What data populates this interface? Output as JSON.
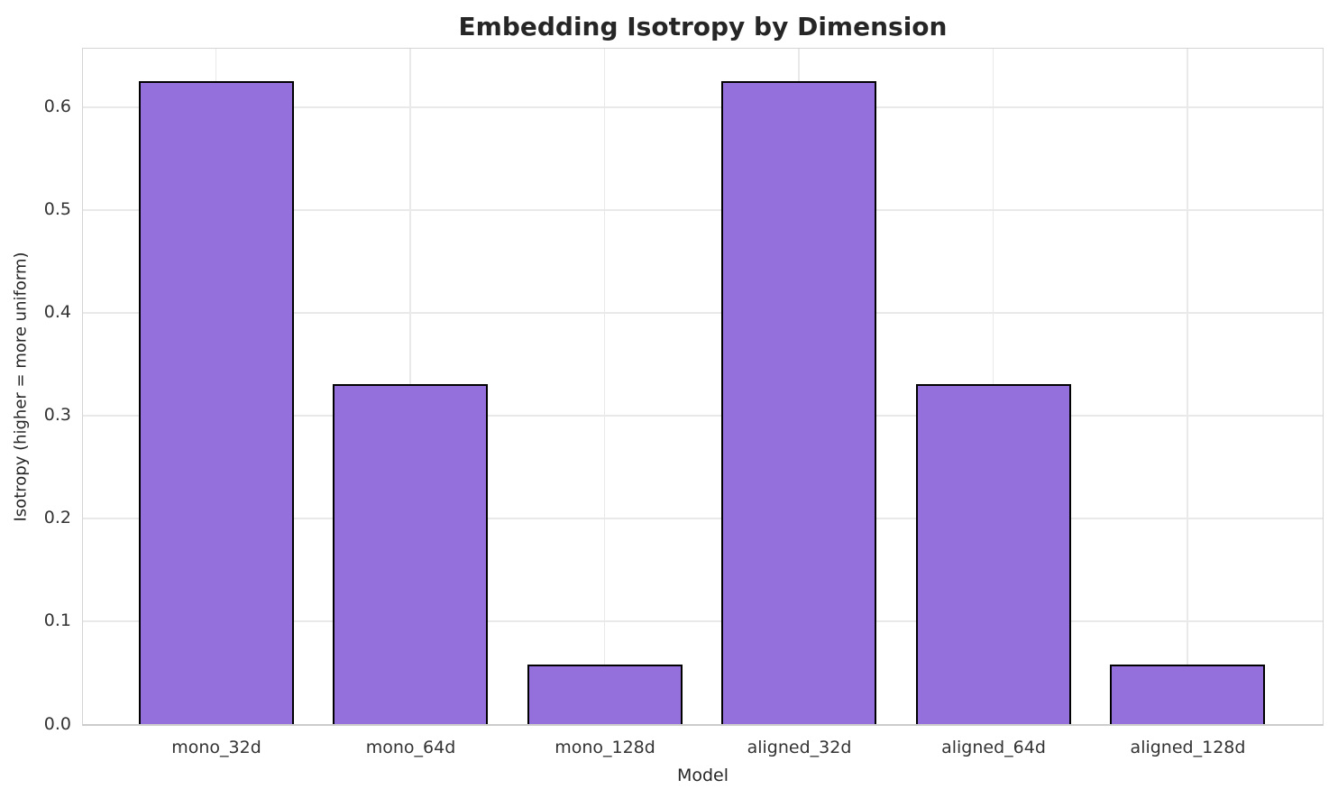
{
  "chart_data": {
    "type": "bar",
    "title": "Embedding Isotropy by Dimension",
    "xlabel": "Model",
    "ylabel": "Isotropy (higher = more uniform)",
    "categories": [
      "mono_32d",
      "mono_64d",
      "mono_128d",
      "aligned_32d",
      "aligned_64d",
      "aligned_128d"
    ],
    "values": [
      0.625,
      0.331,
      0.058,
      0.625,
      0.331,
      0.058
    ],
    "ylim": [
      0,
      0.656
    ],
    "yticks": [
      0.0,
      0.1,
      0.2,
      0.3,
      0.4,
      0.5,
      0.6
    ],
    "ytick_labels": [
      "0.0",
      "0.1",
      "0.2",
      "0.3",
      "0.4",
      "0.5",
      "0.6"
    ],
    "grid": true,
    "legend": null,
    "bar_color": "#9370DB",
    "bar_edge_color": "#000000",
    "grid_color": "#e9e9e9",
    "spine_color": "#d4d4d4",
    "background_color": "#ffffff",
    "title_color": "#262626",
    "tick_color": "#333333"
  }
}
